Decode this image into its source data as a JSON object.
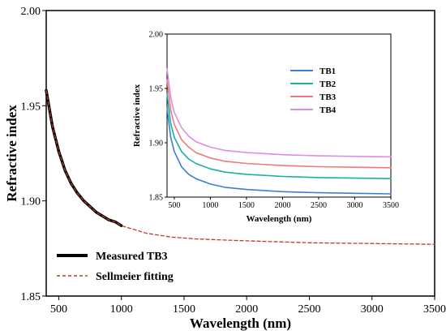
{
  "chart_data": [
    {
      "type": "line",
      "xlabel": "Wavelength (nm)",
      "ylabel": "Refractive index",
      "xlim": [
        400,
        3500
      ],
      "ylim": [
        1.85,
        2.0
      ],
      "xticks": [
        500,
        1000,
        1500,
        2000,
        2500,
        3000,
        3500
      ],
      "yticks": [
        1.85,
        1.9,
        1.95,
        2.0
      ],
      "ytick_labels": [
        "1.85",
        "1.90",
        "1.95",
        "2.00"
      ],
      "grid": false,
      "legend_position": "bottom-left",
      "series": [
        {
          "name": "Measured TB3",
          "style": "solid-thick",
          "color": "#000000",
          "x": [
            400,
            450,
            500,
            550,
            600,
            650,
            700,
            750,
            800,
            850,
            900,
            950,
            1000
          ],
          "y": [
            1.958,
            1.939,
            1.926,
            1.916,
            1.909,
            1.904,
            1.9,
            1.897,
            1.894,
            1.892,
            1.89,
            1.889,
            1.887
          ]
        },
        {
          "name": "Sellmeier fitting",
          "style": "dashed",
          "color": "#c0392b",
          "x": [
            400,
            450,
            500,
            550,
            600,
            650,
            700,
            750,
            800,
            850,
            900,
            950,
            1000,
            1100,
            1200,
            1400,
            1600,
            1800,
            2000,
            2250,
            2500,
            2750,
            3000,
            3250,
            3500
          ],
          "y": [
            1.958,
            1.939,
            1.926,
            1.916,
            1.909,
            1.904,
            1.9,
            1.897,
            1.894,
            1.892,
            1.89,
            1.889,
            1.887,
            1.885,
            1.883,
            1.881,
            1.88,
            1.8795,
            1.879,
            1.8785,
            1.878,
            1.8778,
            1.8776,
            1.8774,
            1.8772
          ]
        }
      ]
    },
    {
      "type": "line",
      "xlabel": "Wavelength (nm)",
      "ylabel": "Refractive index",
      "xlim": [
        400,
        3500
      ],
      "ylim": [
        1.85,
        2.0
      ],
      "xticks": [
        500,
        1000,
        1500,
        2000,
        2500,
        3000,
        3500
      ],
      "yticks": [
        1.85,
        1.9,
        1.95,
        2.0
      ],
      "ytick_labels": [
        "1.85",
        "1.90",
        "1.95",
        "2.00"
      ],
      "grid": false,
      "legend_position": "top-left",
      "series": [
        {
          "name": "TB1",
          "color": "#3b7fd4",
          "x": [
            400,
            450,
            500,
            600,
            700,
            800,
            1000,
            1200,
            1500,
            2000,
            2500,
            3000,
            3500
          ],
          "y": [
            1.932,
            1.905,
            1.892,
            1.878,
            1.871,
            1.867,
            1.862,
            1.859,
            1.857,
            1.855,
            1.854,
            1.8535,
            1.853
          ]
        },
        {
          "name": "TB2",
          "color": "#1aaf9f",
          "x": [
            400,
            450,
            500,
            600,
            700,
            800,
            1000,
            1200,
            1500,
            2000,
            2500,
            3000,
            3500
          ],
          "y": [
            1.945,
            1.918,
            1.905,
            1.892,
            1.885,
            1.881,
            1.876,
            1.873,
            1.871,
            1.869,
            1.868,
            1.8675,
            1.867
          ]
        },
        {
          "name": "TB3",
          "color": "#f07a7a",
          "x": [
            400,
            450,
            500,
            600,
            700,
            800,
            1000,
            1200,
            1500,
            2000,
            2500,
            3000,
            3500
          ],
          "y": [
            1.958,
            1.93,
            1.917,
            1.903,
            1.896,
            1.891,
            1.886,
            1.883,
            1.881,
            1.879,
            1.878,
            1.8775,
            1.877
          ]
        },
        {
          "name": "TB4",
          "color": "#d98ee6",
          "x": [
            400,
            450,
            500,
            600,
            700,
            800,
            1000,
            1200,
            1500,
            2000,
            2500,
            3000,
            3500
          ],
          "y": [
            1.968,
            1.942,
            1.928,
            1.914,
            1.906,
            1.901,
            1.896,
            1.893,
            1.891,
            1.889,
            1.888,
            1.8875,
            1.887
          ]
        }
      ]
    }
  ]
}
